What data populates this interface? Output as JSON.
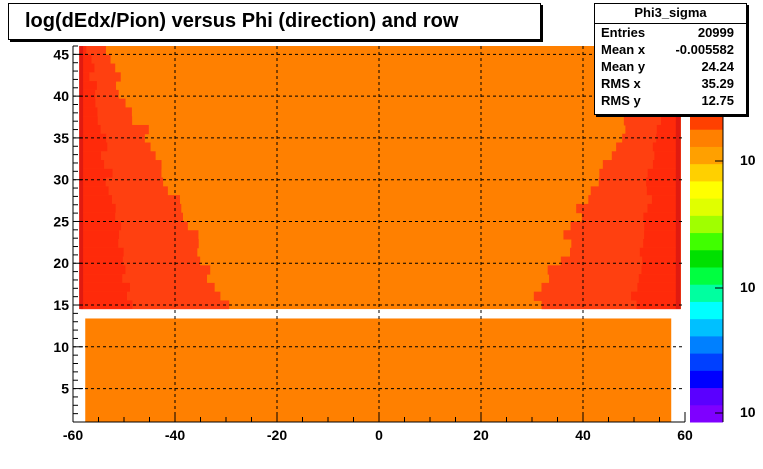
{
  "chart_data": {
    "type": "heatmap",
    "title": "log(dEdx/Pion) versus Phi (direction) and row",
    "xlabel": "",
    "ylabel": "",
    "xlim": [
      -60,
      60
    ],
    "ylim": [
      1,
      46
    ],
    "x_ticks": [
      "-60",
      "-40",
      "-20",
      "0",
      "20",
      "40",
      "60"
    ],
    "y_ticks": [
      "5",
      "10",
      "15",
      "20",
      "25",
      "30",
      "35",
      "40",
      "45"
    ],
    "grid": true,
    "colors": {
      "background_fill": "#ff8000",
      "high_band": "#ff4010",
      "higher_band": "#ff2a0a",
      "edge": "#e01a10",
      "gap_row": "#ffffff",
      "axis": "#000000"
    },
    "regions": [
      {
        "label": "left_high",
        "x_from": -59,
        "x_to": -30,
        "row_from": 14.5,
        "row_to": 46
      },
      {
        "label": "right_high",
        "x_from": 30,
        "x_to": 59,
        "row_from": 14.5,
        "row_to": 46
      },
      {
        "label": "empty_row",
        "x_from": -60,
        "x_to": 60,
        "row_from": 13.4,
        "row_to": 14.5
      }
    ],
    "palette": {
      "colors": [
        "#7f00ff",
        "#5a00ff",
        "#0000ff",
        "#0040ff",
        "#0080ff",
        "#00c0ff",
        "#00ffff",
        "#00ffa0",
        "#00ff40",
        "#00e000",
        "#40ff00",
        "#a0ff00",
        "#e0ff00",
        "#ffff00",
        "#ffd000",
        "#ffa000",
        "#ff8000",
        "#ff4000"
      ],
      "labels": [
        "10",
        "10",
        "10"
      ]
    }
  },
  "stats": {
    "name": "Phi3_sigma",
    "rows": [
      {
        "label": "Entries",
        "value": "20999"
      },
      {
        "label": "Mean x",
        "value": "-0.005582"
      },
      {
        "label": "Mean y",
        "value": "24.24"
      },
      {
        "label": "RMS x",
        "value": "35.29"
      },
      {
        "label": "RMS y",
        "value": "12.75"
      }
    ]
  }
}
